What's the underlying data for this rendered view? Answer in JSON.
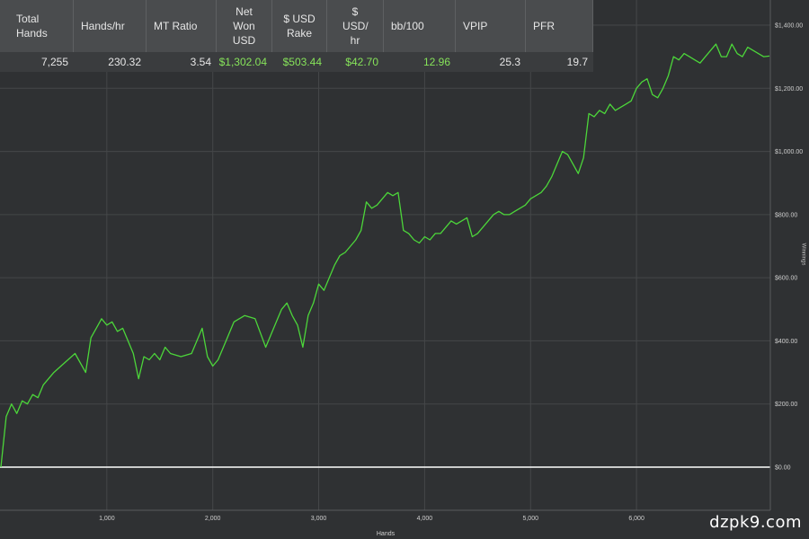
{
  "stats": {
    "headers": [
      "Total Hands",
      "Hands/hr",
      "MT Ratio",
      "Net Won USD",
      "$ USD Rake",
      "$ USD/ hr",
      "bb/100",
      "VPIP",
      "PFR"
    ],
    "values": [
      "7,255",
      "230.32",
      "3.54",
      "$1,302.04",
      "$503.44",
      "$42.70",
      "12.96",
      "25.3",
      "19.7"
    ],
    "green_values": [
      3,
      4,
      5,
      6
    ]
  },
  "chart_data": {
    "type": "line",
    "title": "",
    "xlabel": "Hands",
    "ylabel": "Winnings",
    "x_ticks": [
      "1,000",
      "2,000",
      "3,000",
      "4,000",
      "5,000",
      "6,000"
    ],
    "x_tick_values": [
      1000,
      2000,
      3000,
      4000,
      5000,
      6000
    ],
    "y_ticks": [
      "$0.00",
      "$200.00",
      "$400.00",
      "$600.00",
      "$800.00",
      "$1,000.00",
      "$1,200.00",
      "$1,400.00"
    ],
    "y_tick_values": [
      0,
      200,
      400,
      600,
      800,
      1000,
      1200,
      1400
    ],
    "xlim": [
      0,
      7255
    ],
    "ylim": [
      0,
      1440
    ],
    "grid": true,
    "series": [
      {
        "color": "#4cd63a",
        "x": [
          0,
          50,
          100,
          150,
          200,
          250,
          300,
          350,
          400,
          500,
          600,
          700,
          800,
          850,
          900,
          950,
          1000,
          1050,
          1100,
          1150,
          1200,
          1250,
          1300,
          1350,
          1400,
          1450,
          1500,
          1550,
          1600,
          1700,
          1800,
          1900,
          1950,
          2000,
          2050,
          2100,
          2150,
          2200,
          2300,
          2400,
          2500,
          2550,
          2600,
          2650,
          2700,
          2750,
          2800,
          2850,
          2900,
          2950,
          3000,
          3050,
          3100,
          3150,
          3200,
          3250,
          3300,
          3350,
          3400,
          3450,
          3500,
          3550,
          3600,
          3650,
          3700,
          3750,
          3800,
          3850,
          3900,
          3950,
          4000,
          4050,
          4100,
          4150,
          4200,
          4250,
          4300,
          4350,
          4400,
          4450,
          4500,
          4550,
          4600,
          4650,
          4700,
          4750,
          4800,
          4850,
          4900,
          4950,
          5000,
          5050,
          5100,
          5150,
          5200,
          5250,
          5300,
          5350,
          5400,
          5450,
          5500,
          5550,
          5600,
          5650,
          5700,
          5750,
          5800,
          5850,
          5900,
          5950,
          6000,
          6050,
          6100,
          6150,
          6200,
          6250,
          6300,
          6350,
          6400,
          6450,
          6500,
          6550,
          6600,
          6650,
          6700,
          6750,
          6800,
          6850,
          6900,
          6950,
          7000,
          7050,
          7100,
          7150,
          7200,
          7255
        ],
        "y": [
          0,
          160,
          200,
          170,
          210,
          200,
          230,
          220,
          260,
          300,
          330,
          360,
          300,
          410,
          440,
          470,
          450,
          460,
          430,
          440,
          400,
          360,
          280,
          350,
          340,
          360,
          340,
          380,
          360,
          350,
          360,
          440,
          350,
          320,
          340,
          380,
          420,
          460,
          480,
          470,
          380,
          420,
          460,
          500,
          520,
          480,
          450,
          380,
          480,
          520,
          580,
          560,
          600,
          640,
          670,
          680,
          700,
          720,
          750,
          840,
          820,
          830,
          850,
          870,
          860,
          870,
          750,
          740,
          720,
          710,
          730,
          720,
          740,
          740,
          760,
          780,
          770,
          780,
          790,
          730,
          740,
          760,
          780,
          800,
          810,
          800,
          800,
          810,
          820,
          830,
          850,
          860,
          870,
          890,
          920,
          960,
          1000,
          990,
          960,
          930,
          980,
          1120,
          1110,
          1130,
          1120,
          1150,
          1130,
          1140,
          1150,
          1160,
          1200,
          1220,
          1230,
          1180,
          1170,
          1200,
          1240,
          1300,
          1290,
          1310,
          1300,
          1290,
          1280,
          1300,
          1320,
          1340,
          1300,
          1300,
          1340,
          1310,
          1300,
          1330,
          1320,
          1310,
          1300,
          1302
        ]
      }
    ]
  },
  "watermark": "dzpk9.com"
}
